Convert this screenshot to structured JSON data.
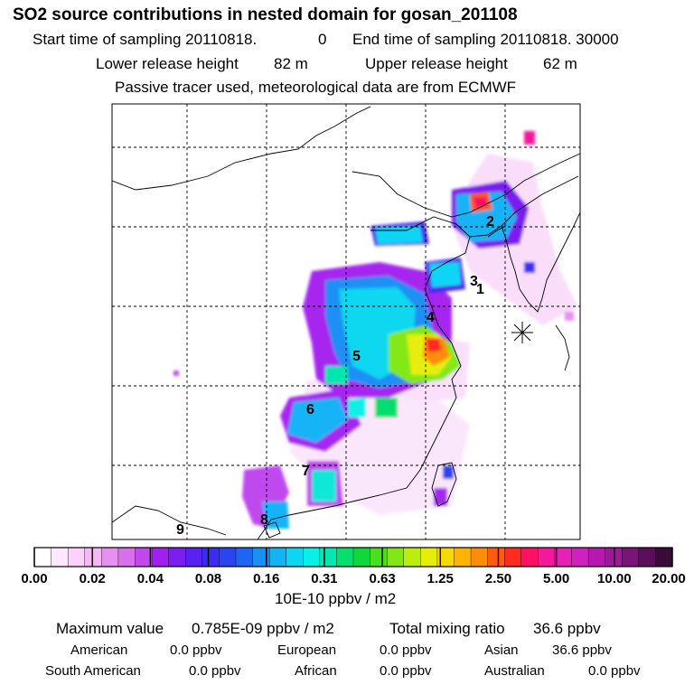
{
  "header": {
    "title": "SO2 source contributions in nested domain for gosan_201108",
    "start_label": "Start time of sampling 20110818.",
    "start_hour": "0",
    "end_label": "End time of sampling 20110818. 30000",
    "lower_label": "Lower release height",
    "lower_value": "82 m",
    "upper_label": "Upper release height",
    "upper_value": "62 m",
    "tracer_note": "Passive tracer used, meteorological data are from ECMWF"
  },
  "map": {
    "region_labels": [
      "1",
      "2",
      "3",
      "4",
      "5",
      "6",
      "7",
      "8",
      "9"
    ],
    "receptor_marker": "receptor-star-icon"
  },
  "colorbar": {
    "tick_labels": [
      "0.00",
      "0.02",
      "0.04",
      "0.08",
      "0.16",
      "0.31",
      "0.63",
      "1.25",
      "2.50",
      "5.00",
      "10.00",
      "20.00"
    ],
    "unit": "10E-10 ppbv / m2",
    "colors": [
      "#ffffff",
      "#fde8fd",
      "#fad2fa",
      "#f5b8f5",
      "#e890ef",
      "#d870ec",
      "#c248ee",
      "#a020f0",
      "#7a1ff0",
      "#5a22f0",
      "#3b2df0",
      "#2a45f0",
      "#1e66f2",
      "#1890f4",
      "#12b4f6",
      "#0dd6f5",
      "#08f0e8",
      "#06e6b0",
      "#06de70",
      "#10d83a",
      "#48e01c",
      "#82e812",
      "#bcee0c",
      "#e6ee08",
      "#f8d806",
      "#ffb405",
      "#ff8c08",
      "#ff5a10",
      "#ff2a20",
      "#ff1060",
      "#f6189a",
      "#e820b8",
      "#d020c0",
      "#b818b0",
      "#9a1a98",
      "#7a1478",
      "#5c0e5a",
      "#3a0a38"
    ]
  },
  "summary": {
    "max_label": "Maximum value",
    "max_value": "0.785E-09 ppbv / m2",
    "total_label": "Total mixing ratio",
    "total_value": "36.6 ppbv",
    "regions": [
      {
        "label": "American",
        "value": "0.0 ppbv"
      },
      {
        "label": "European",
        "value": "0.0 ppbv"
      },
      {
        "label": "Asian",
        "value": "36.6 ppbv"
      },
      {
        "label": "South American",
        "value": "0.0 ppbv"
      },
      {
        "label": "African",
        "value": "0.0 ppbv"
      },
      {
        "label": "Australian",
        "value": "0.0 ppbv"
      }
    ]
  }
}
